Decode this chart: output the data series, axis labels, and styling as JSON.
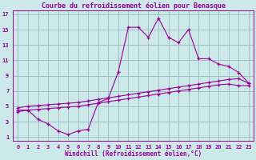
{
  "title": "Courbe du refroidissement éolien pour Benasque",
  "xlabel": "Windchill (Refroidissement éolien,°C)",
  "bg_color": "#cce8e8",
  "grid_color": "#99bbbb",
  "line_color": "#990099",
  "xlim": [
    -0.5,
    23.5
  ],
  "ylim": [
    0.5,
    17.5
  ],
  "xticks": [
    0,
    1,
    2,
    3,
    4,
    5,
    6,
    7,
    8,
    9,
    10,
    11,
    12,
    13,
    14,
    15,
    16,
    17,
    18,
    19,
    20,
    21,
    22,
    23
  ],
  "yticks": [
    1,
    3,
    5,
    7,
    9,
    11,
    13,
    15,
    17
  ],
  "series1_x": [
    0,
    1,
    2,
    3,
    4,
    5,
    6,
    7,
    8,
    9,
    10,
    11,
    12,
    13,
    14,
    15,
    16,
    17,
    18,
    19,
    20,
    21,
    22,
    23
  ],
  "series1_y": [
    4.5,
    4.5,
    3.3,
    2.7,
    1.8,
    1.3,
    1.8,
    2.0,
    5.5,
    6.0,
    9.5,
    15.3,
    15.3,
    14.0,
    16.5,
    14.0,
    13.3,
    15.0,
    11.2,
    11.2,
    10.5,
    10.2,
    9.4,
    8.0
  ],
  "series2_x": [
    0,
    1,
    2,
    3,
    4,
    5,
    6,
    7,
    8,
    9,
    10,
    11,
    12,
    13,
    14,
    15,
    16,
    17,
    18,
    19,
    20,
    21,
    22,
    23
  ],
  "series2_y": [
    4.8,
    5.0,
    5.1,
    5.2,
    5.3,
    5.4,
    5.5,
    5.7,
    5.9,
    6.1,
    6.3,
    6.5,
    6.7,
    6.9,
    7.1,
    7.3,
    7.5,
    7.7,
    7.9,
    8.1,
    8.3,
    8.5,
    8.6,
    8.0
  ],
  "series3_x": [
    0,
    1,
    2,
    3,
    4,
    5,
    6,
    7,
    8,
    9,
    10,
    11,
    12,
    13,
    14,
    15,
    16,
    17,
    18,
    19,
    20,
    21,
    22,
    23
  ],
  "series3_y": [
    4.3,
    4.5,
    4.6,
    4.7,
    4.8,
    4.9,
    5.0,
    5.2,
    5.4,
    5.6,
    5.8,
    6.0,
    6.2,
    6.4,
    6.6,
    6.8,
    7.0,
    7.2,
    7.4,
    7.6,
    7.8,
    7.9,
    7.7,
    7.7
  ],
  "title_fontsize": 6,
  "xlabel_fontsize": 5.5,
  "tick_fontsize": 5.0,
  "marker": "+"
}
